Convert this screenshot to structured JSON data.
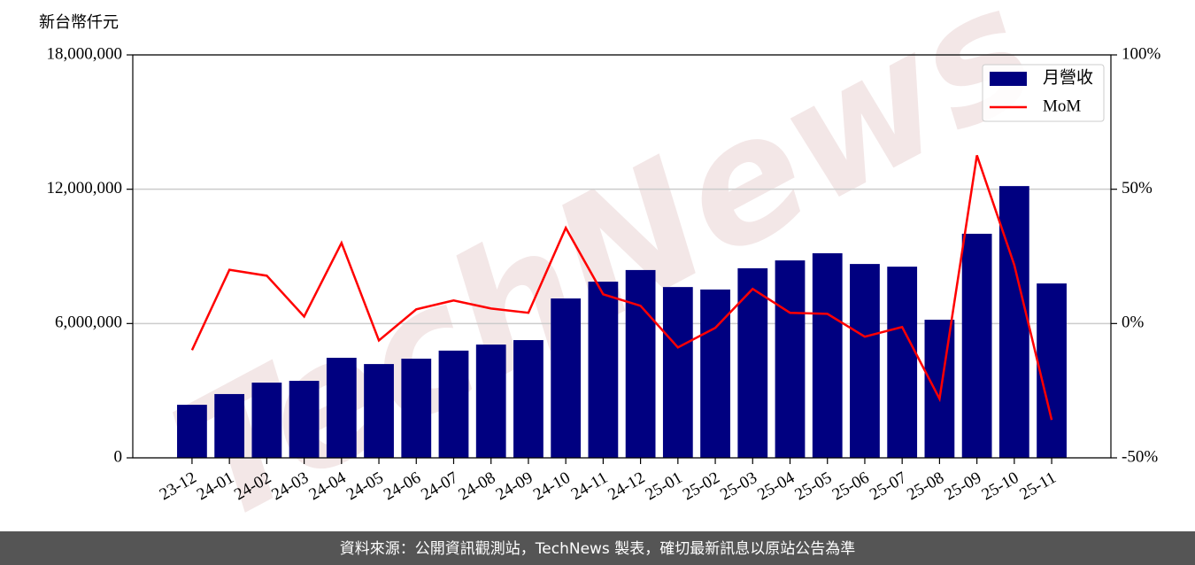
{
  "chart_data": {
    "type": "bar",
    "y_label": "新台幣仟元",
    "watermark": "TechNews",
    "footer": "資料來源：公開資訊觀測站，TechNews 製表，確切最新訊息以原站公告為準",
    "categories": [
      "23-12",
      "24-01",
      "24-02",
      "24-03",
      "24-04",
      "24-05",
      "24-06",
      "24-07",
      "24-08",
      "24-09",
      "24-10",
      "24-11",
      "24-12",
      "25-01",
      "25-02",
      "25-03",
      "25-04",
      "25-05",
      "25-06",
      "25-07",
      "25-08",
      "25-09",
      "25-10",
      "25-11"
    ],
    "series": [
      {
        "name": "月營收",
        "type": "bar",
        "color": "#000080",
        "axis": "y",
        "values": [
          2370000,
          2850000,
          3360000,
          3440000,
          4470000,
          4190000,
          4430000,
          4790000,
          5060000,
          5260000,
          7120000,
          7870000,
          8390000,
          7630000,
          7520000,
          8470000,
          8820000,
          9140000,
          8660000,
          8540000,
          6170000,
          10010000,
          12140000,
          7790000
        ]
      },
      {
        "name": "MoM",
        "type": "line",
        "color": "#ff0000",
        "axis": "y2",
        "values": [
          -9.9,
          20.0,
          17.8,
          2.6,
          30.0,
          -6.3,
          5.3,
          8.6,
          5.6,
          4.0,
          35.6,
          10.9,
          6.6,
          -8.9,
          -1.6,
          12.9,
          4.0,
          3.6,
          -4.9,
          -1.3,
          -28.0,
          62.6,
          21.8,
          -35.9
        ]
      }
    ],
    "ylim": [
      0,
      18000000
    ],
    "yticks": [
      {
        "value": 0,
        "label": "0"
      },
      {
        "value": 6000000,
        "label": "6,000,000"
      },
      {
        "value": 12000000,
        "label": "12,000,000"
      },
      {
        "value": 18000000,
        "label": "18,000,000"
      }
    ],
    "y2lim": [
      -50,
      100
    ],
    "y2ticks": [
      {
        "value": -50,
        "label": "-50%"
      },
      {
        "value": 0,
        "label": "0%"
      },
      {
        "value": 50,
        "label": "50%"
      },
      {
        "value": 100,
        "label": "100%"
      }
    ],
    "grid": true,
    "legend": "upper right"
  }
}
